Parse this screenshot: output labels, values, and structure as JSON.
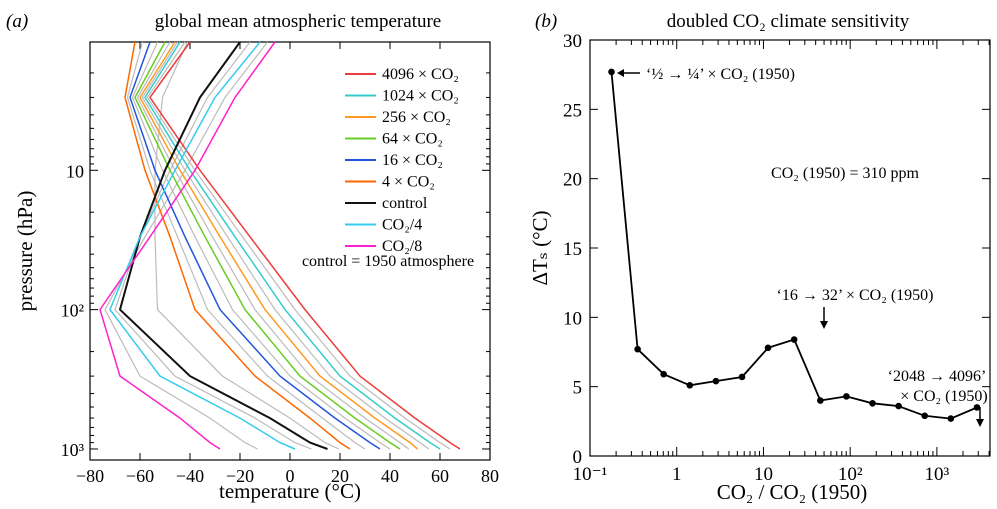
{
  "panel_a": {
    "letter": "(a)",
    "title": "global mean atmospheric temperature",
    "xlabel": "temperature (°C)",
    "ylabel": "pressure (hPa)",
    "control_note": "control = 1950 atmosphere"
  },
  "panel_b": {
    "letter": "(b)",
    "title": "doubled CO₂ climate sensitivity",
    "xlabel": "CO₂ / CO₂ (1950)",
    "ylabel": "ΔTₛ (°C)",
    "co2_note": "CO₂ (1950) = 310 ppm",
    "annotations": [
      "‘½ → ¼’ × CO₂ (1950)",
      "‘16 → 32’ × CO₂ (1950)",
      "‘2048 → 4096’",
      "× CO₂ (1950)"
    ]
  },
  "chart_data": [
    {
      "type": "line",
      "title": "global mean atmospheric temperature",
      "xlabel": "temperature (°C)",
      "ylabel": "pressure (hPa)",
      "xlim": [
        -80,
        80
      ],
      "ylim": [
        1000,
        1
      ],
      "yscale": "log",
      "xticks": [
        "-80",
        "-60",
        "-40",
        "-20",
        "0",
        "20",
        "40",
        "60",
        "80"
      ],
      "yticks": [
        "10",
        "10²",
        "10³"
      ],
      "ytick_values": [
        10,
        100,
        1000
      ],
      "grid": false,
      "legend_position": "top-right",
      "series": [
        {
          "name": "4096 × CO₂",
          "color": "#ee3b3b",
          "x": [
            -40,
            -56,
            -36,
            -16,
            6,
            28,
            50,
            64,
            68
          ],
          "p": [
            1,
            3,
            10,
            30,
            100,
            300,
            600,
            900,
            1000
          ]
        },
        {
          "name": "1024 × CO₂",
          "color": "#33cccc",
          "x": [
            -44,
            -58,
            -40,
            -22,
            -2,
            20,
            42,
            56,
            60
          ],
          "p": [
            1,
            3,
            10,
            30,
            100,
            300,
            600,
            900,
            1000
          ]
        },
        {
          "name": "256 × CO₂",
          "color": "#ff9922",
          "x": [
            -46,
            -60,
            -44,
            -28,
            -10,
            12,
            34,
            48,
            51
          ],
          "p": [
            1,
            3,
            10,
            30,
            100,
            300,
            600,
            900,
            1000
          ]
        },
        {
          "name": "64 × CO₂",
          "color": "#66cc22",
          "x": [
            -50,
            -62,
            -48,
            -34,
            -18,
            4,
            26,
            40,
            44
          ],
          "p": [
            1,
            3,
            10,
            30,
            100,
            300,
            600,
            900,
            1000
          ]
        },
        {
          "name": "16 × CO₂",
          "color": "#2255dd",
          "x": [
            -56,
            -64,
            -54,
            -42,
            -28,
            -4,
            18,
            32,
            36
          ],
          "p": [
            1,
            3,
            10,
            30,
            100,
            300,
            600,
            900,
            1000
          ]
        },
        {
          "name": "4 × CO₂",
          "color": "#ff6600",
          "x": [
            -62,
            -66,
            -58,
            -48,
            -38,
            -14,
            8,
            20,
            24
          ],
          "p": [
            1,
            3,
            10,
            30,
            100,
            300,
            600,
            900,
            1000
          ]
        },
        {
          "name": "control",
          "color": "#111111",
          "x": [
            -20,
            -36,
            -50,
            -60,
            -68,
            -40,
            -8,
            8,
            15
          ],
          "p": [
            1,
            3,
            10,
            30,
            100,
            300,
            600,
            900,
            1000
          ]
        },
        {
          "name": "CO₂/4",
          "color": "#33ccee",
          "x": [
            -12,
            -30,
            -46,
            -60,
            -72,
            -52,
            -20,
            -4,
            2
          ],
          "p": [
            1,
            3,
            10,
            30,
            100,
            300,
            600,
            900,
            1000
          ]
        },
        {
          "name": "CO₂/8",
          "color": "#ff22cc",
          "x": [
            -6,
            -22,
            -38,
            -56,
            -76,
            -68,
            -44,
            -32,
            -28
          ],
          "p": [
            1,
            3,
            10,
            30,
            100,
            300,
            600,
            900,
            1000
          ]
        }
      ]
    },
    {
      "type": "line",
      "title": "doubled CO₂ climate sensitivity",
      "xlabel": "CO₂ / CO₂ (1950)",
      "ylabel": "ΔTₛ (°C)",
      "xscale": "log",
      "xlim": [
        0.1,
        4096
      ],
      "ylim": [
        0,
        30
      ],
      "xticks": [
        "10⁻¹",
        "1",
        "10",
        "10²",
        "10³"
      ],
      "xtick_values": [
        0.1,
        1,
        10,
        100,
        1000
      ],
      "yticks": [
        "0",
        "5",
        "10",
        "15",
        "20",
        "25",
        "30"
      ],
      "ytick_values": [
        0,
        5,
        10,
        15,
        20,
        25,
        30
      ],
      "grid": false,
      "series": [
        {
          "x": [
            0.177,
            0.354,
            0.707,
            1.414,
            2.83,
            5.66,
            11.3,
            22.6,
            45.3,
            90.5,
            181,
            362,
            724,
            1448,
            2896
          ],
          "y": [
            27.7,
            7.7,
            5.9,
            5.1,
            5.4,
            5.7,
            7.8,
            8.4,
            4.0,
            4.3,
            3.8,
            3.6,
            2.9,
            2.7,
            3.5
          ]
        }
      ]
    }
  ]
}
